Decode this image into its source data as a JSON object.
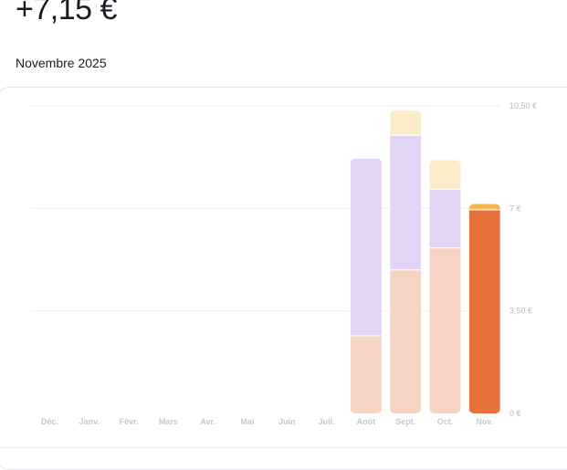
{
  "header": {
    "amount": "+7,15 €",
    "period": "Novembre 2025"
  },
  "colors": {
    "peach": "#f6d4c4",
    "lavender": "#e3d3f5",
    "cream": "#fcebc9",
    "orange": "#e8703a",
    "gold": "#f2b84c",
    "grid": "#f0f0f2"
  },
  "chart_data": {
    "type": "bar",
    "stacked": true,
    "categories": [
      "Déc.",
      "Janv.",
      "Févr.",
      "Mars",
      "Avr.",
      "Mai",
      "Juin",
      "Juil.",
      "Août",
      "Sept.",
      "Oct.",
      "Nov."
    ],
    "ylim": [
      0,
      10.5
    ],
    "yticks": [
      0,
      3.5,
      7,
      10.5
    ],
    "ytick_labels": [
      "0 €",
      "3,50 €",
      "7 €",
      "10,50 €"
    ],
    "axis_position": "right",
    "grid": true,
    "series": [
      {
        "color": "#f6d4c4",
        "values": [
          0,
          0,
          0,
          0,
          0,
          0,
          0,
          0,
          2.65,
          4.9,
          5.65,
          0
        ]
      },
      {
        "color": "#e3d3f5",
        "values": [
          0,
          0,
          0,
          0,
          0,
          0,
          0,
          0,
          6.05,
          4.6,
          2.0,
          0
        ]
      },
      {
        "color": "#fcebc9",
        "values": [
          0,
          0,
          0,
          0,
          0,
          0,
          0,
          0,
          0,
          0.85,
          1.0,
          0
        ]
      },
      {
        "color": "#e8703a",
        "values": [
          0,
          0,
          0,
          0,
          0,
          0,
          0,
          0,
          0,
          0,
          0,
          6.95
        ]
      },
      {
        "color": "#f2b84c",
        "values": [
          0,
          0,
          0,
          0,
          0,
          0,
          0,
          0,
          0,
          0,
          0,
          0.2
        ]
      }
    ]
  }
}
